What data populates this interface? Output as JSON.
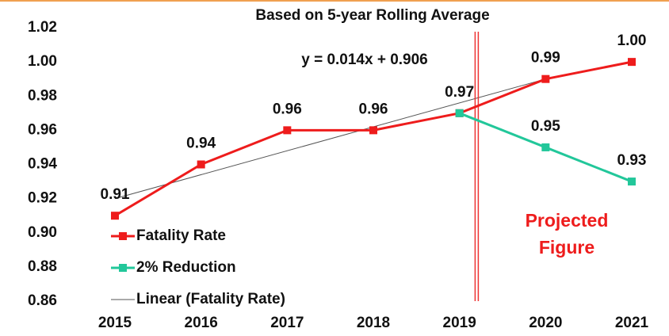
{
  "chart_data": {
    "type": "line",
    "title": "Based on 5-year Rolling Average",
    "categories": [
      "2015",
      "2016",
      "2017",
      "2018",
      "2019",
      "2020",
      "2021"
    ],
    "series": [
      {
        "name": "Fatality Rate",
        "color": "#ee1c1c",
        "values": [
          0.91,
          0.94,
          0.96,
          0.96,
          0.97,
          0.99,
          1.0
        ],
        "value_labels": [
          "0.91",
          "0.94",
          "0.96",
          "0.96",
          "0.97",
          "0.99",
          "1.00"
        ]
      },
      {
        "name": "2% Reduction",
        "color": "#22c79a",
        "values": [
          null,
          null,
          null,
          null,
          0.97,
          0.95,
          0.93
        ],
        "value_labels": [
          null,
          null,
          null,
          null,
          null,
          "0.95",
          "0.93"
        ]
      }
    ],
    "trendline": {
      "name": "Linear (Fatality Rate)",
      "color": "#555555",
      "slope": 0.014,
      "intercept": 0.906,
      "equation": "y = 0.014x + 0.906"
    },
    "annotation": [
      "Projected",
      "Figure"
    ],
    "ylim": [
      0.86,
      1.02
    ],
    "yticks": [
      {
        "value": 0.86,
        "label": "0.86"
      },
      {
        "value": 0.88,
        "label": "0.88"
      },
      {
        "value": 0.9,
        "label": "0.90"
      },
      {
        "value": 0.92,
        "label": "0.92"
      },
      {
        "value": 0.94,
        "label": "0.94"
      },
      {
        "value": 0.96,
        "label": "0.96"
      },
      {
        "value": 0.98,
        "label": "0.98"
      },
      {
        "value": 1.0,
        "label": "1.00"
      },
      {
        "value": 1.02,
        "label": "1.02"
      }
    ],
    "grid": false,
    "legend": "left"
  }
}
